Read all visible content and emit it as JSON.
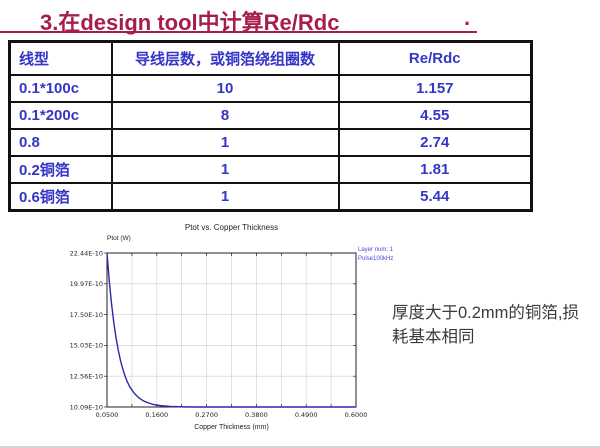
{
  "title": {
    "text": "3.在design tool中计算Re/Rdc",
    "trailing_dot": "."
  },
  "table": {
    "headers": [
      "线型",
      "导线层数，或铜箔绕组圈数",
      "Re/Rdc"
    ],
    "rows": [
      [
        "0.1*100c",
        "10",
        "1.157"
      ],
      [
        "0.1*200c",
        "8",
        "4.55"
      ],
      [
        "0.8",
        "1",
        "2.74"
      ],
      [
        "0.2铜箔",
        "1",
        "1.81"
      ],
      [
        "0.6铜箔",
        "1",
        "5.44"
      ]
    ]
  },
  "chart_data": {
    "type": "line",
    "title": "Ptot vs. Copper Thickness",
    "ylabel": "Ptot (W)",
    "xlabel": "Copper Thickness (mm)",
    "xlim": [
      0.05,
      0.6
    ],
    "ylim_e10": [
      10.09,
      22.44
    ],
    "x_divisions": 10,
    "grid": true,
    "x_ticks": [
      {
        "value": 0.05,
        "label": "0.0500"
      },
      {
        "value": 0.16,
        "label": "0.1600"
      },
      {
        "value": 0.27,
        "label": "0.2700"
      },
      {
        "value": 0.38,
        "label": "0.3800"
      },
      {
        "value": 0.49,
        "label": "0.4900"
      },
      {
        "value": 0.6,
        "label": "0.6000"
      }
    ],
    "y_ticks": [
      {
        "value_e10": 22.44,
        "label": "22.44E-10"
      },
      {
        "value_e10": 19.97,
        "label": "19.97E-10"
      },
      {
        "value_e10": 17.5,
        "label": "17.50E-10"
      },
      {
        "value_e10": 15.03,
        "label": "15.03E-10"
      },
      {
        "value_e10": 12.56,
        "label": "12.56E-10"
      },
      {
        "value_e10": 10.09,
        "label": "10.09E-10"
      }
    ],
    "legend": {
      "position": "top-right-outside",
      "entries": [
        "Layer num: 1",
        "Pulse100kHz"
      ]
    },
    "line_color": "#2a2aa8",
    "series": [
      {
        "name": "Layer num: 1, Pulse100kHz",
        "x": [
          0.05,
          0.055,
          0.06,
          0.065,
          0.07,
          0.075,
          0.08,
          0.085,
          0.09,
          0.095,
          0.1,
          0.11,
          0.12,
          0.13,
          0.14,
          0.15,
          0.16,
          0.17,
          0.18,
          0.19,
          0.2,
          0.22,
          0.25,
          0.3,
          0.35,
          0.4,
          0.45,
          0.5,
          0.55,
          0.6
        ],
        "y_e10": [
          22.44,
          20.2,
          18.37,
          16.86,
          15.63,
          14.62,
          13.79,
          13.11,
          12.56,
          12.1,
          11.73,
          11.19,
          10.84,
          10.59,
          10.43,
          10.32,
          10.24,
          10.19,
          10.16,
          10.13,
          10.12,
          10.1,
          10.09,
          10.09,
          10.09,
          10.09,
          10.09,
          10.09,
          10.09,
          10.09
        ]
      }
    ]
  },
  "note": {
    "lines": [
      "厚度大于0.2mm的铜箔,损",
      "耗基本相同"
    ]
  },
  "colors": {
    "title": "#a61e4d",
    "table_text": "#3535c8",
    "table_border": "#111111",
    "curve": "#2a2aa8",
    "legend_text": "#4a4ad0",
    "grid": "#cfcfcf",
    "note_text": "#3a3a3a"
  }
}
